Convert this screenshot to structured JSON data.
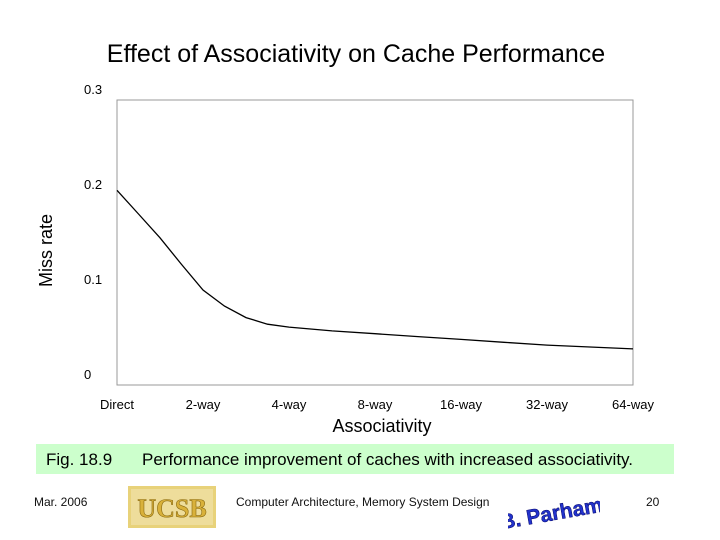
{
  "slide": {
    "title": "Effect of Associativity on Cache Performance"
  },
  "chart_data": {
    "type": "line",
    "title": "Effect of Associativity on Cache Performance",
    "xlabel": "Associativity",
    "ylabel": "Miss rate",
    "categories": [
      "Direct",
      "2-way",
      "4-way",
      "8-way",
      "16-way",
      "32-way",
      "64-way"
    ],
    "y_ticks": [
      "0.3",
      "0.2",
      "0.1",
      "0"
    ],
    "ylim": [
      0,
      0.3
    ],
    "grid": true,
    "series": [
      {
        "name": "Miss rate",
        "x": [
          0,
          0.25,
          0.5,
          0.75,
          1,
          1.25,
          1.5,
          1.75,
          2,
          2.5,
          3,
          3.5,
          4,
          4.5,
          5,
          5.5,
          6
        ],
        "values": [
          0.205,
          0.18,
          0.155,
          0.127,
          0.1,
          0.083,
          0.071,
          0.064,
          0.061,
          0.057,
          0.054,
          0.051,
          0.048,
          0.045,
          0.042,
          0.04,
          0.038
        ]
      }
    ]
  },
  "caption": {
    "figure": "Fig. 18.9",
    "text": "Performance improvement of caches with increased associativity."
  },
  "footer": {
    "date": "Mar. 2006",
    "logo_text": "UCSB",
    "course": "Computer Architecture, Memory System Design",
    "author_logo": "B. Parhami",
    "page": "20"
  },
  "colors": {
    "caption_bg": "#ccffcc",
    "logo_gold": "#d9b13a",
    "logo_blue": "#2233cc"
  }
}
